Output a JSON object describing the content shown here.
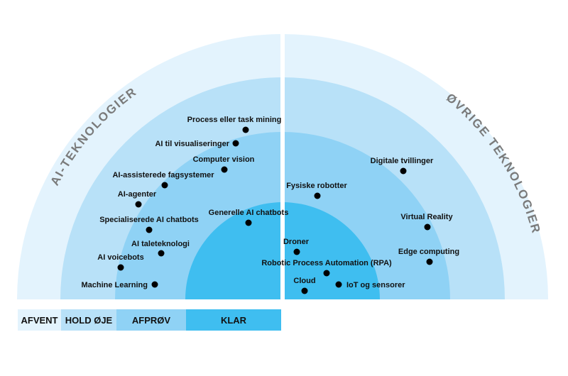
{
  "sections": {
    "left": "AI-TEKNOLOGIER",
    "right": "ØVRIGE TEKNOLOGIER"
  },
  "rings": [
    {
      "label": "AFVENT",
      "color": "#e3f3fd"
    },
    {
      "label": "HOLD ØJE",
      "color": "#b8e1f8"
    },
    {
      "label": "AFPRØV",
      "color": "#8fd2f5"
    },
    {
      "label": "KLAR",
      "color": "#3fbef0"
    }
  ],
  "items": [
    {
      "label": "Process eller task mining",
      "section": "left",
      "ring": "HOLD ØJE"
    },
    {
      "label": "AI til visualiseringer",
      "section": "left",
      "ring": "HOLD ØJE"
    },
    {
      "label": "Computer vision",
      "section": "left",
      "ring": "AFPRØV"
    },
    {
      "label": "AI-assisterede fagsystemer",
      "section": "left",
      "ring": "HOLD ØJE"
    },
    {
      "label": "AI-agenter",
      "section": "left",
      "ring": "HOLD ØJE"
    },
    {
      "label": "Specialiserede AI chatbots",
      "section": "left",
      "ring": "AFPRØV"
    },
    {
      "label": "AI taleteknologi",
      "section": "left",
      "ring": "AFPRØV"
    },
    {
      "label": "AI voicebots",
      "section": "left",
      "ring": "HOLD ØJE"
    },
    {
      "label": "Machine Learning",
      "section": "left",
      "ring": "AFPRØV"
    },
    {
      "label": "Generelle AI chatbots",
      "section": "left",
      "ring": "KLAR"
    },
    {
      "label": "Digitale tvillinger",
      "section": "right",
      "ring": "HOLD ØJE"
    },
    {
      "label": "Fysiske robotter",
      "section": "right",
      "ring": "AFPRØV"
    },
    {
      "label": "Virtual Reality",
      "section": "right",
      "ring": "HOLD ØJE"
    },
    {
      "label": "Edge computing",
      "section": "right",
      "ring": "AFPRØV"
    },
    {
      "label": "Droner",
      "section": "right",
      "ring": "KLAR"
    },
    {
      "label": "Robotic Process Automation (RPA)",
      "section": "right",
      "ring": "KLAR"
    },
    {
      "label": "Cloud",
      "section": "right",
      "ring": "KLAR"
    },
    {
      "label": "IoT og sensorer",
      "section": "right",
      "ring": "KLAR"
    }
  ]
}
